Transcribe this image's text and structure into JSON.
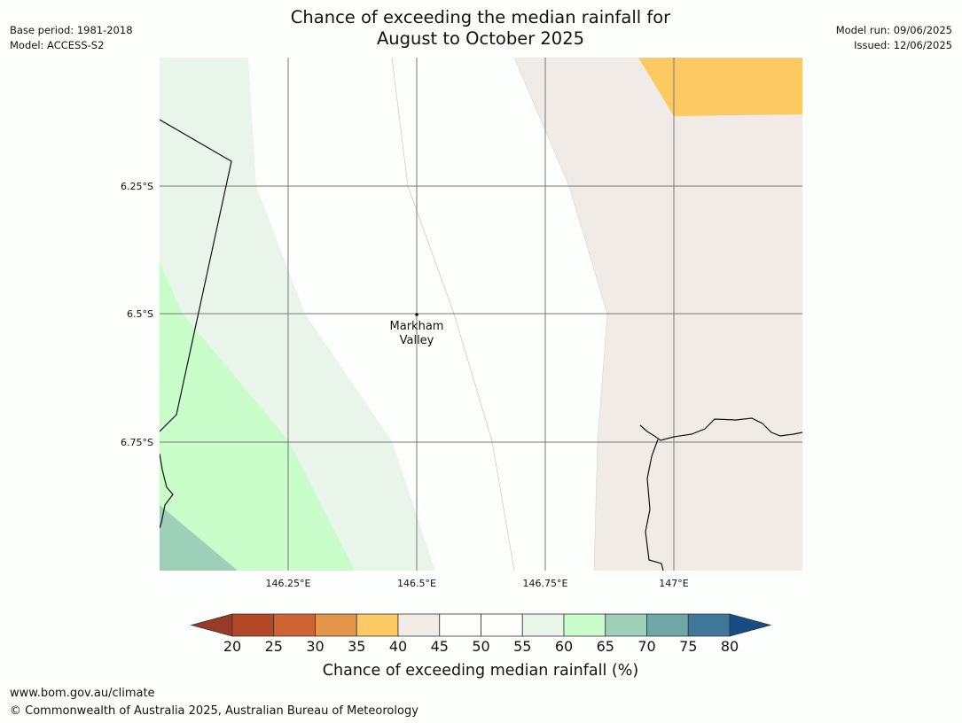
{
  "header": {
    "title_line1": "Chance of exceeding the median rainfall for",
    "title_line2": "August to October 2025",
    "base_period": "Base period: 1981-2018",
    "model": "Model: ACCESS-S2",
    "model_run": "Model run: 09/06/2025",
    "issued": "Issued: 12/06/2025"
  },
  "map": {
    "lat_labels": [
      "6.25°S",
      "6.5°S",
      "6.75°S"
    ],
    "lon_labels": [
      "146.25°E",
      "146.5°E",
      "146.75°E",
      "147°E"
    ],
    "place": {
      "line1": "Markham",
      "line2": "Valley"
    },
    "colors": {
      "c35_40": "#fdc962",
      "c40_45": "#f0ebe6",
      "c45_55": "#fdfffd",
      "c55_60": "#e9f5eb",
      "c60_65": "#c9fdc9",
      "c65_70": "#9dcfb9"
    }
  },
  "colorbar": {
    "title": "Chance of exceeding median rainfall (%)",
    "ticks": [
      "20",
      "25",
      "30",
      "35",
      "40",
      "45",
      "50",
      "55",
      "60",
      "65",
      "70",
      "75",
      "80"
    ],
    "under_color": "#973b26",
    "over_color": "#164d87",
    "colors": [
      "#b24825",
      "#cf6331",
      "#e39549",
      "#fdc962",
      "#f0ebe6",
      "#fdfffd",
      "#fdfffd",
      "#e9f5eb",
      "#c9fdc9",
      "#9dcfb9",
      "#6fa6a6",
      "#3f789b"
    ]
  },
  "footer": {
    "url": "www.bom.gov.au/climate",
    "copyright": "© Commonwealth of Australia 2025, Australian Bureau of Meteorology"
  }
}
